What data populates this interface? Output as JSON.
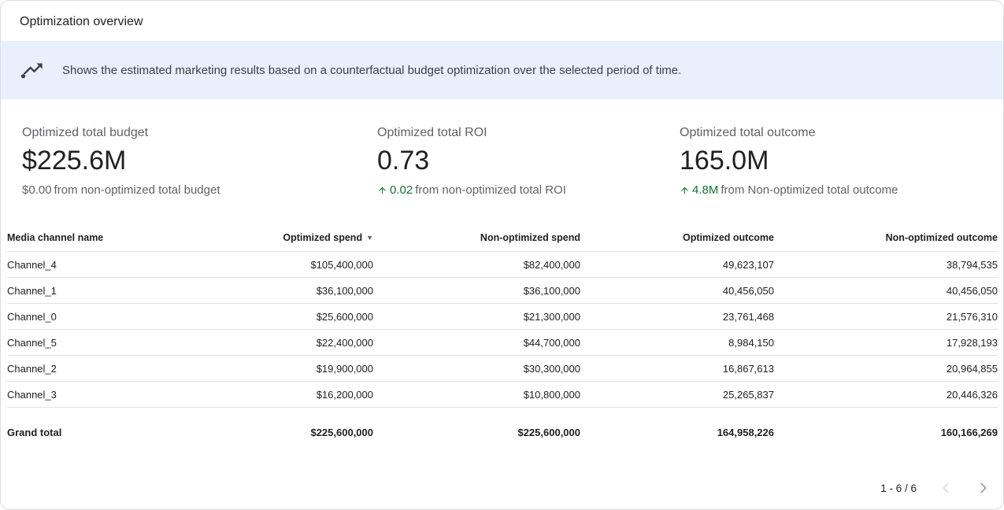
{
  "header": {
    "title": "Optimization overview"
  },
  "banner": {
    "icon": "insights-trending-icon",
    "text": "Shows the estimated marketing results based on a counterfactual budget optimization over the selected period of time."
  },
  "kpis": [
    {
      "label": "Optimized total budget",
      "value": "$225.6M",
      "delta": "$0.00",
      "delta_suffix": "from non-optimized total budget",
      "delta_positive": false
    },
    {
      "label": "Optimized total ROI",
      "value": "0.73",
      "delta": "0.02",
      "delta_suffix": "from non-optimized total ROI",
      "delta_positive": true
    },
    {
      "label": "Optimized total outcome",
      "value": "165.0M",
      "delta": "4.8M",
      "delta_suffix": "from Non-optimized total outcome",
      "delta_positive": true
    }
  ],
  "table": {
    "columns": [
      "Media channel name",
      "Optimized spend",
      "Non-optimized spend",
      "Optimized outcome",
      "Non-optimized outcome"
    ],
    "sort_column": "Optimized spend",
    "sort_indicator": "▼",
    "rows": [
      [
        "Channel_4",
        "$105,400,000",
        "$82,400,000",
        "49,623,107",
        "38,794,535"
      ],
      [
        "Channel_1",
        "$36,100,000",
        "$36,100,000",
        "40,456,050",
        "40,456,050"
      ],
      [
        "Channel_0",
        "$25,600,000",
        "$21,300,000",
        "23,761,468",
        "21,576,310"
      ],
      [
        "Channel_5",
        "$22,400,000",
        "$44,700,000",
        "8,984,150",
        "17,928,193"
      ],
      [
        "Channel_2",
        "$19,900,000",
        "$30,300,000",
        "16,867,613",
        "20,964,855"
      ],
      [
        "Channel_3",
        "$16,200,000",
        "$10,800,000",
        "25,265,837",
        "20,446,326"
      ]
    ],
    "grand_total": [
      "Grand total",
      "$225,600,000",
      "$225,600,000",
      "164,958,226",
      "160,166,269"
    ]
  },
  "pagination": {
    "label": "1 - 6 / 6"
  },
  "colors": {
    "positive": "#137333",
    "banner_bg": "#e8f0fe",
    "muted_text": "#5f6368",
    "border": "#e0e0e0"
  }
}
